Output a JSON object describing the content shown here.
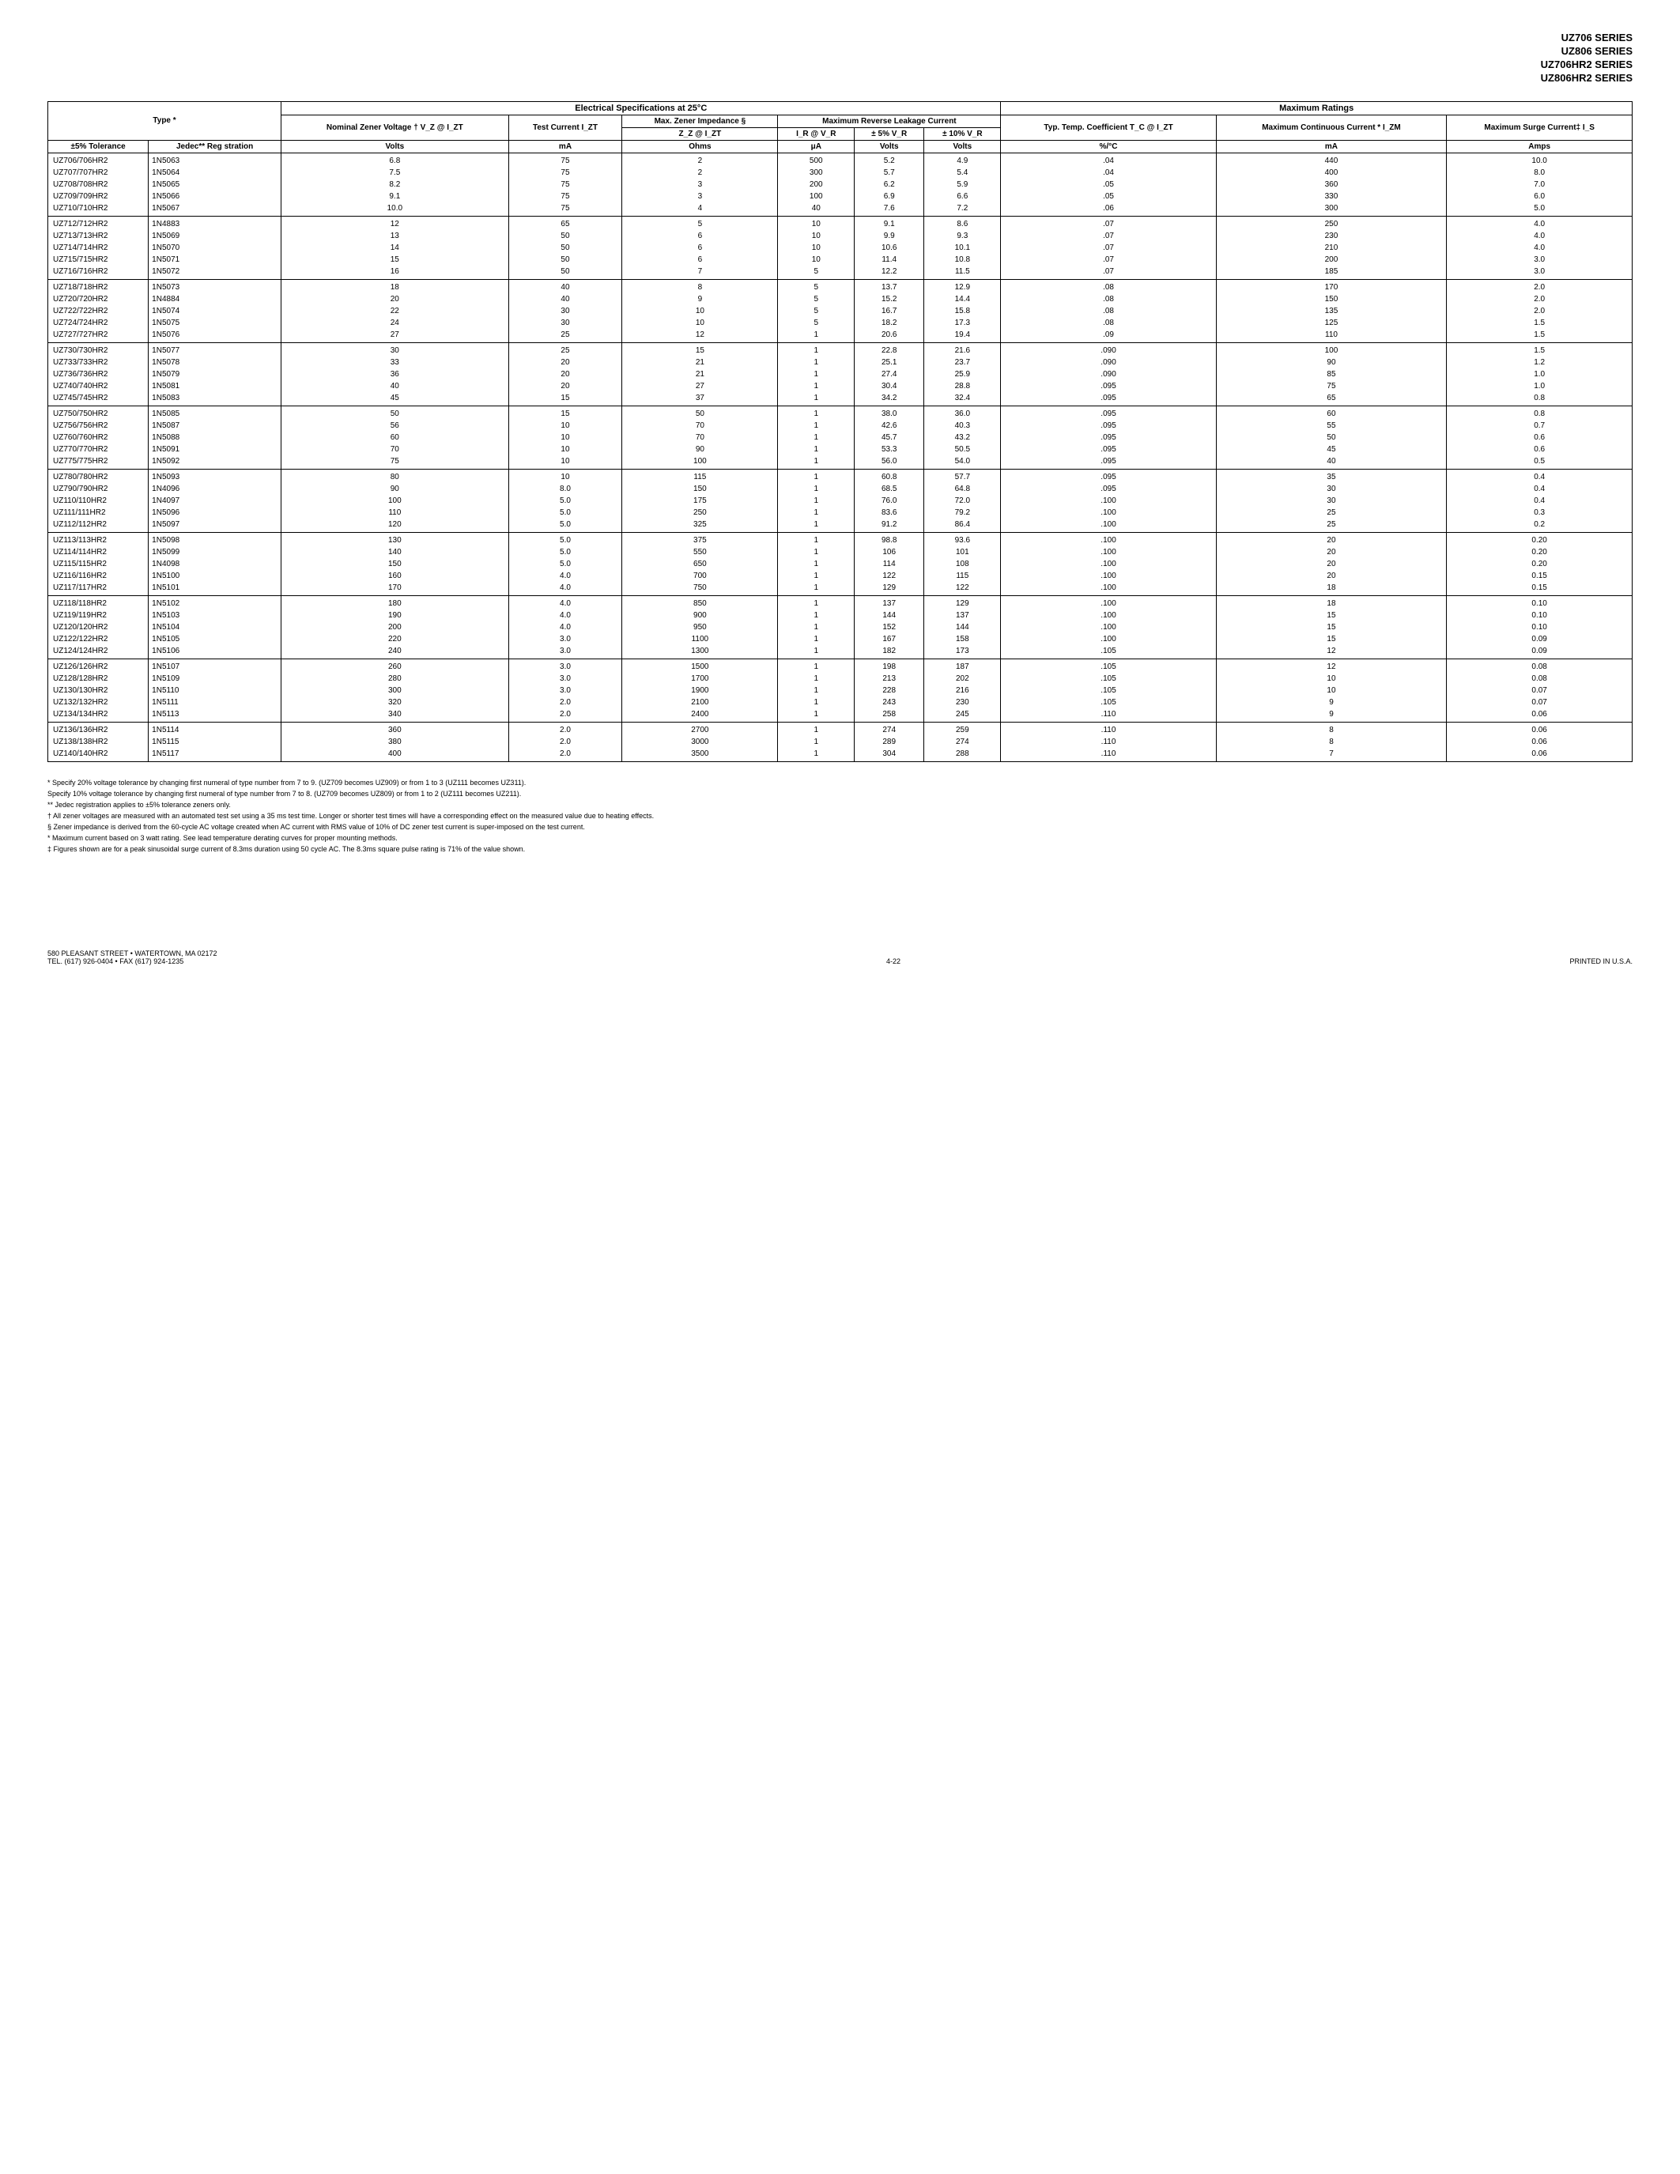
{
  "series": [
    "UZ706 SERIES",
    "UZ806 SERIES",
    "UZ706HR2 SERIES",
    "UZ806HR2 SERIES"
  ],
  "headers": {
    "elec_spec": "Electrical Specifications at 25°C",
    "max_ratings": "Maximum Ratings",
    "type": "Type *",
    "nominal": "Nominal Zener Voltage † V_Z @ I_ZT",
    "test_current": "Test Current I_ZT",
    "max_impedance": "Max. Zener Impedance §",
    "max_leakage": "Maximum Reverse Leakage Current",
    "zz": "Z_Z @ I_ZT",
    "ir": "I_R @ V_R",
    "pm5": "± 5% V_R",
    "pm10": "± 10% V_R",
    "temp_coef": "Typ. Temp. Coefficient T_C @ I_ZT",
    "max_cont": "Maximum Continuous Current * I_ZM",
    "max_surge": "Maximum Surge Current‡ I_S",
    "tol": "±5% Tolerance",
    "jedec": "Jedec** Reg stration",
    "u_volts": "Volts",
    "u_ma": "mA",
    "u_ohms": "Ohms",
    "u_ua": "μA",
    "u_pct": "%/°C",
    "u_amps": "Amps"
  },
  "groups": [
    [
      [
        "UZ706/706HR2",
        "1N5063",
        "6.8",
        "75",
        "2",
        "500",
        "5.2",
        "4.9",
        ".04",
        "440",
        "10.0"
      ],
      [
        "UZ707/707HR2",
        "1N5064",
        "7.5",
        "75",
        "2",
        "300",
        "5.7",
        "5.4",
        ".04",
        "400",
        "8.0"
      ],
      [
        "UZ708/708HR2",
        "1N5065",
        "8.2",
        "75",
        "3",
        "200",
        "6.2",
        "5.9",
        ".05",
        "360",
        "7.0"
      ],
      [
        "UZ709/709HR2",
        "1N5066",
        "9.1",
        "75",
        "3",
        "100",
        "6.9",
        "6.6",
        ".05",
        "330",
        "6.0"
      ],
      [
        "UZ710/710HR2",
        "1N5067",
        "10.0",
        "75",
        "4",
        "40",
        "7.6",
        "7.2",
        ".06",
        "300",
        "5.0"
      ]
    ],
    [
      [
        "UZ712/712HR2",
        "1N4883",
        "12",
        "65",
        "5",
        "10",
        "9.1",
        "8.6",
        ".07",
        "250",
        "4.0"
      ],
      [
        "UZ713/713HR2",
        "1N5069",
        "13",
        "50",
        "6",
        "10",
        "9.9",
        "9.3",
        ".07",
        "230",
        "4.0"
      ],
      [
        "UZ714/714HR2",
        "1N5070",
        "14",
        "50",
        "6",
        "10",
        "10.6",
        "10.1",
        ".07",
        "210",
        "4.0"
      ],
      [
        "UZ715/715HR2",
        "1N5071",
        "15",
        "50",
        "6",
        "10",
        "11.4",
        "10.8",
        ".07",
        "200",
        "3.0"
      ],
      [
        "UZ716/716HR2",
        "1N5072",
        "16",
        "50",
        "7",
        "5",
        "12.2",
        "11.5",
        ".07",
        "185",
        "3.0"
      ]
    ],
    [
      [
        "UZ718/718HR2",
        "1N5073",
        "18",
        "40",
        "8",
        "5",
        "13.7",
        "12.9",
        ".08",
        "170",
        "2.0"
      ],
      [
        "UZ720/720HR2",
        "1N4884",
        "20",
        "40",
        "9",
        "5",
        "15.2",
        "14.4",
        ".08",
        "150",
        "2.0"
      ],
      [
        "UZ722/722HR2",
        "1N5074",
        "22",
        "30",
        "10",
        "5",
        "16.7",
        "15.8",
        ".08",
        "135",
        "2.0"
      ],
      [
        "UZ724/724HR2",
        "1N5075",
        "24",
        "30",
        "10",
        "5",
        "18.2",
        "17.3",
        ".08",
        "125",
        "1.5"
      ],
      [
        "UZ727/727HR2",
        "1N5076",
        "27",
        "25",
        "12",
        "1",
        "20.6",
        "19.4",
        ".09",
        "110",
        "1.5"
      ]
    ],
    [
      [
        "UZ730/730HR2",
        "1N5077",
        "30",
        "25",
        "15",
        "1",
        "22.8",
        "21.6",
        ".090",
        "100",
        "1.5"
      ],
      [
        "UZ733/733HR2",
        "1N5078",
        "33",
        "20",
        "21",
        "1",
        "25.1",
        "23.7",
        ".090",
        "90",
        "1.2"
      ],
      [
        "UZ736/736HR2",
        "1N5079",
        "36",
        "20",
        "21",
        "1",
        "27.4",
        "25.9",
        ".090",
        "85",
        "1.0"
      ],
      [
        "UZ740/740HR2",
        "1N5081",
        "40",
        "20",
        "27",
        "1",
        "30.4",
        "28.8",
        ".095",
        "75",
        "1.0"
      ],
      [
        "UZ745/745HR2",
        "1N5083",
        "45",
        "15",
        "37",
        "1",
        "34.2",
        "32.4",
        ".095",
        "65",
        "0.8"
      ]
    ],
    [
      [
        "UZ750/750HR2",
        "1N5085",
        "50",
        "15",
        "50",
        "1",
        "38.0",
        "36.0",
        ".095",
        "60",
        "0.8"
      ],
      [
        "UZ756/756HR2",
        "1N5087",
        "56",
        "10",
        "70",
        "1",
        "42.6",
        "40.3",
        ".095",
        "55",
        "0.7"
      ],
      [
        "UZ760/760HR2",
        "1N5088",
        "60",
        "10",
        "70",
        "1",
        "45.7",
        "43.2",
        ".095",
        "50",
        "0.6"
      ],
      [
        "UZ770/770HR2",
        "1N5091",
        "70",
        "10",
        "90",
        "1",
        "53.3",
        "50.5",
        ".095",
        "45",
        "0.6"
      ],
      [
        "UZ775/775HR2",
        "1N5092",
        "75",
        "10",
        "100",
        "1",
        "56.0",
        "54.0",
        ".095",
        "40",
        "0.5"
      ]
    ],
    [
      [
        "UZ780/780HR2",
        "1N5093",
        "80",
        "10",
        "115",
        "1",
        "60.8",
        "57.7",
        ".095",
        "35",
        "0.4"
      ],
      [
        "UZ790/790HR2",
        "1N4096",
        "90",
        "8.0",
        "150",
        "1",
        "68.5",
        "64.8",
        ".095",
        "30",
        "0.4"
      ],
      [
        "UZ110/110HR2",
        "1N4097",
        "100",
        "5.0",
        "175",
        "1",
        "76.0",
        "72.0",
        ".100",
        "30",
        "0.4"
      ],
      [
        "UZ111/111HR2",
        "1N5096",
        "110",
        "5.0",
        "250",
        "1",
        "83.6",
        "79.2",
        ".100",
        "25",
        "0.3"
      ],
      [
        "UZ112/112HR2",
        "1N5097",
        "120",
        "5.0",
        "325",
        "1",
        "91.2",
        "86.4",
        ".100",
        "25",
        "0.2"
      ]
    ],
    [
      [
        "UZ113/113HR2",
        "1N5098",
        "130",
        "5.0",
        "375",
        "1",
        "98.8",
        "93.6",
        ".100",
        "20",
        "0.20"
      ],
      [
        "UZ114/114HR2",
        "1N5099",
        "140",
        "5.0",
        "550",
        "1",
        "106",
        "101",
        ".100",
        "20",
        "0.20"
      ],
      [
        "UZ115/115HR2",
        "1N4098",
        "150",
        "5.0",
        "650",
        "1",
        "114",
        "108",
        ".100",
        "20",
        "0.20"
      ],
      [
        "UZ116/116HR2",
        "1N5100",
        "160",
        "4.0",
        "700",
        "1",
        "122",
        "115",
        ".100",
        "20",
        "0.15"
      ],
      [
        "UZ117/117HR2",
        "1N5101",
        "170",
        "4.0",
        "750",
        "1",
        "129",
        "122",
        ".100",
        "18",
        "0.15"
      ]
    ],
    [
      [
        "UZ118/118HR2",
        "1N5102",
        "180",
        "4.0",
        "850",
        "1",
        "137",
        "129",
        ".100",
        "18",
        "0.10"
      ],
      [
        "UZ119/119HR2",
        "1N5103",
        "190",
        "4.0",
        "900",
        "1",
        "144",
        "137",
        ".100",
        "15",
        "0.10"
      ],
      [
        "UZ120/120HR2",
        "1N5104",
        "200",
        "4.0",
        "950",
        "1",
        "152",
        "144",
        ".100",
        "15",
        "0.10"
      ],
      [
        "UZ122/122HR2",
        "1N5105",
        "220",
        "3.0",
        "1100",
        "1",
        "167",
        "158",
        ".100",
        "15",
        "0.09"
      ],
      [
        "UZ124/124HR2",
        "1N5106",
        "240",
        "3.0",
        "1300",
        "1",
        "182",
        "173",
        ".105",
        "12",
        "0.09"
      ]
    ],
    [
      [
        "UZ126/126HR2",
        "1N5107",
        "260",
        "3.0",
        "1500",
        "1",
        "198",
        "187",
        ".105",
        "12",
        "0.08"
      ],
      [
        "UZ128/128HR2",
        "1N5109",
        "280",
        "3.0",
        "1700",
        "1",
        "213",
        "202",
        ".105",
        "10",
        "0.08"
      ],
      [
        "UZ130/130HR2",
        "1N5110",
        "300",
        "3.0",
        "1900",
        "1",
        "228",
        "216",
        ".105",
        "10",
        "0.07"
      ],
      [
        "UZ132/132HR2",
        "1N5111",
        "320",
        "2.0",
        "2100",
        "1",
        "243",
        "230",
        ".105",
        "9",
        "0.07"
      ],
      [
        "UZ134/134HR2",
        "1N5113",
        "340",
        "2.0",
        "2400",
        "1",
        "258",
        "245",
        ".110",
        "9",
        "0.06"
      ]
    ],
    [
      [
        "UZ136/136HR2",
        "1N5114",
        "360",
        "2.0",
        "2700",
        "1",
        "274",
        "259",
        ".110",
        "8",
        "0.06"
      ],
      [
        "UZ138/138HR2",
        "1N5115",
        "380",
        "2.0",
        "3000",
        "1",
        "289",
        "274",
        ".110",
        "8",
        "0.06"
      ],
      [
        "UZ140/140HR2",
        "1N5117",
        "400",
        "2.0",
        "3500",
        "1",
        "304",
        "288",
        ".110",
        "7",
        "0.06"
      ]
    ]
  ],
  "footnotes": [
    "* Specify 20% voltage tolerance by changing first numeral of type number from 7 to 9. (UZ709 becomes UZ909) or from 1 to 3 (UZ111 becomes UZ311).",
    "Specify 10% voltage tolerance by changing first numeral of type number from 7 to 8. (UZ709 becomes UZ809) or from 1 to 2 (UZ111 becomes UZ211).",
    "** Jedec registration applies to ±5% tolerance zeners only.",
    "† All zener voltages are measured with an automated test set using a 35 ms test time. Longer or shorter test times will have a corresponding effect on the measured value due to heating effects.",
    "§ Zener impedance is derived from the 60-cycle AC voltage created when AC current with RMS value of 10% of DC zener test current is super-imposed on the test current.",
    "* Maximum current based on 3 watt rating. See lead temperature derating curves for proper mounting methods.",
    "‡ Figures shown are for a peak sinusoidal surge current of 8.3ms duration using 50 cycle AC. The 8.3ms square pulse rating is 71% of the value shown."
  ],
  "footer": {
    "addr1": "580 PLEASANT STREET • WATERTOWN, MA 02172",
    "addr2": "TEL. (617) 926-0404 • FAX (617) 924-1235",
    "page": "4-22",
    "printed": "PRINTED IN U.S.A."
  }
}
